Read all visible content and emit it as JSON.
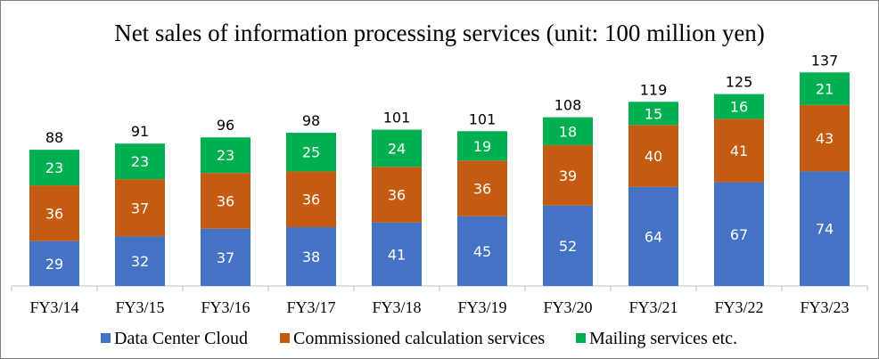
{
  "chart_data": {
    "type": "bar",
    "stacked": true,
    "title": "Net sales of information processing services (unit: 100 million yen)",
    "xlabel": "",
    "ylabel": "",
    "categories": [
      "FY3/14",
      "FY3/15",
      "FY3/16",
      "FY3/17",
      "FY3/18",
      "FY3/19",
      "FY3/20",
      "FY3/21",
      "FY3/22",
      "FY3/23"
    ],
    "series": [
      {
        "name": "Data Center Cloud",
        "color": "#4472c4",
        "values": [
          29,
          32,
          37,
          38,
          41,
          45,
          52,
          64,
          67,
          74
        ]
      },
      {
        "name": "Commissioned calculation services",
        "color": "#c55a11",
        "values": [
          36,
          37,
          36,
          36,
          36,
          36,
          39,
          40,
          41,
          43
        ]
      },
      {
        "name": "Mailing services etc.",
        "color": "#00b050",
        "values": [
          23,
          23,
          23,
          25,
          24,
          19,
          18,
          15,
          16,
          21
        ]
      }
    ],
    "totals": [
      88,
      91,
      96,
      98,
      101,
      101,
      108,
      119,
      125,
      137
    ],
    "ylim": [
      0,
      137
    ],
    "grid": false,
    "legend_position": "bottom"
  }
}
